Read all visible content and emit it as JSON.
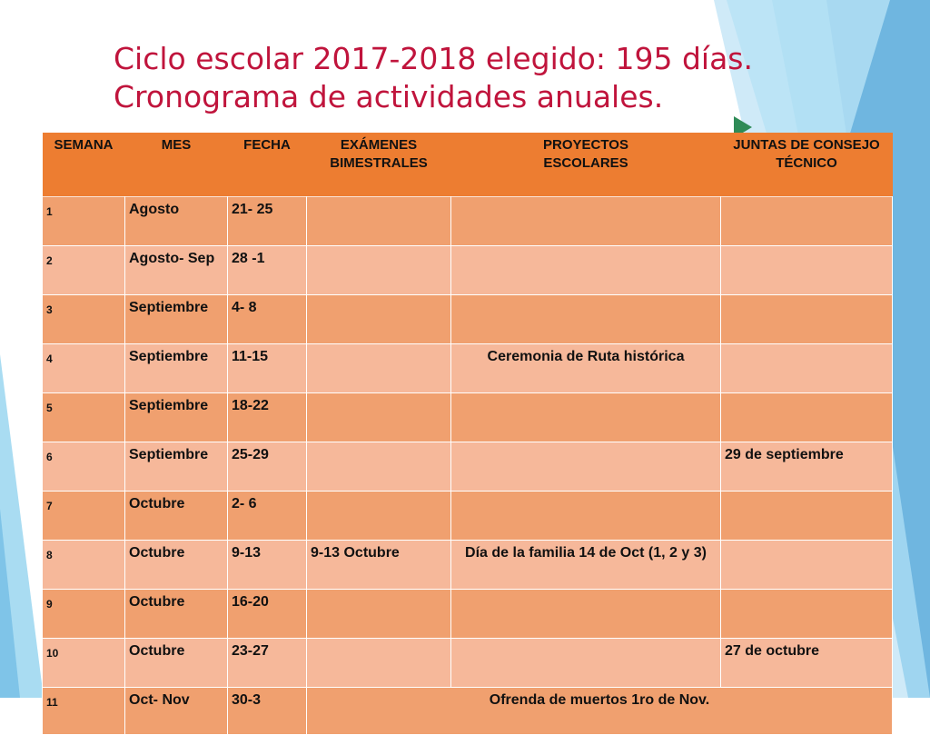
{
  "title": {
    "line1": "Ciclo escolar 2017-2018 elegido: 195 días.",
    "line2": "Cronograma de actividades anuales."
  },
  "colors": {
    "title": "#c0143c",
    "header": "#ed7d31",
    "row_odd": "#f0a06f",
    "row_even": "#f6b89a",
    "decor_blue": "#7fc4e8"
  },
  "table": {
    "headers": {
      "semana": "SEMANA",
      "mes": "MES",
      "fecha": "FECHA",
      "examenes_1": "EXÁMENES",
      "examenes_2": "BIMESTRALES",
      "proyectos_1": "PROYECTOS",
      "proyectos_2": "ESCOLARES",
      "juntas_1": "JUNTAS DE CONSEJO",
      "juntas_2": "TÉCNICO"
    },
    "rows": [
      {
        "semana": "1",
        "mes": "Agosto",
        "fecha": "21- 25",
        "examenes": "",
        "proyectos": "",
        "juntas": ""
      },
      {
        "semana": "2",
        "mes": "Agosto- Sep",
        "fecha": "28 -1",
        "examenes": "",
        "proyectos": "",
        "juntas": ""
      },
      {
        "semana": "3",
        "mes": "Septiembre",
        "fecha": "4- 8",
        "examenes": "",
        "proyectos": "",
        "juntas": ""
      },
      {
        "semana": "4",
        "mes": "Septiembre",
        "fecha": "11-15",
        "examenes": "",
        "proyectos": "Ceremonia de Ruta histórica",
        "juntas": ""
      },
      {
        "semana": "5",
        "mes": "Septiembre",
        "fecha": "18-22",
        "examenes": "",
        "proyectos": "",
        "juntas": ""
      },
      {
        "semana": "6",
        "mes": "Septiembre",
        "fecha": "25-29",
        "examenes": "",
        "proyectos": "",
        "juntas": "29 de septiembre"
      },
      {
        "semana": "7",
        "mes": "Octubre",
        "fecha": "2- 6",
        "examenes": "",
        "proyectos": "",
        "juntas": ""
      },
      {
        "semana": "8",
        "mes": "Octubre",
        "fecha": "9-13",
        "examenes": "9-13  Octubre",
        "proyectos": "Día de la familia 14 de Oct (1, 2 y 3)",
        "juntas": ""
      },
      {
        "semana": "9",
        "mes": "Octubre",
        "fecha": "16-20",
        "examenes": "",
        "proyectos": "",
        "juntas": ""
      },
      {
        "semana": "10",
        "mes": "Octubre",
        "fecha": "23-27",
        "examenes": "",
        "proyectos": "",
        "juntas": "27 de octubre"
      },
      {
        "semana": "11",
        "mes": "Oct- Nov",
        "fecha": "30-3",
        "merged": "Ofrenda de muertos 1ro de Nov."
      }
    ]
  }
}
